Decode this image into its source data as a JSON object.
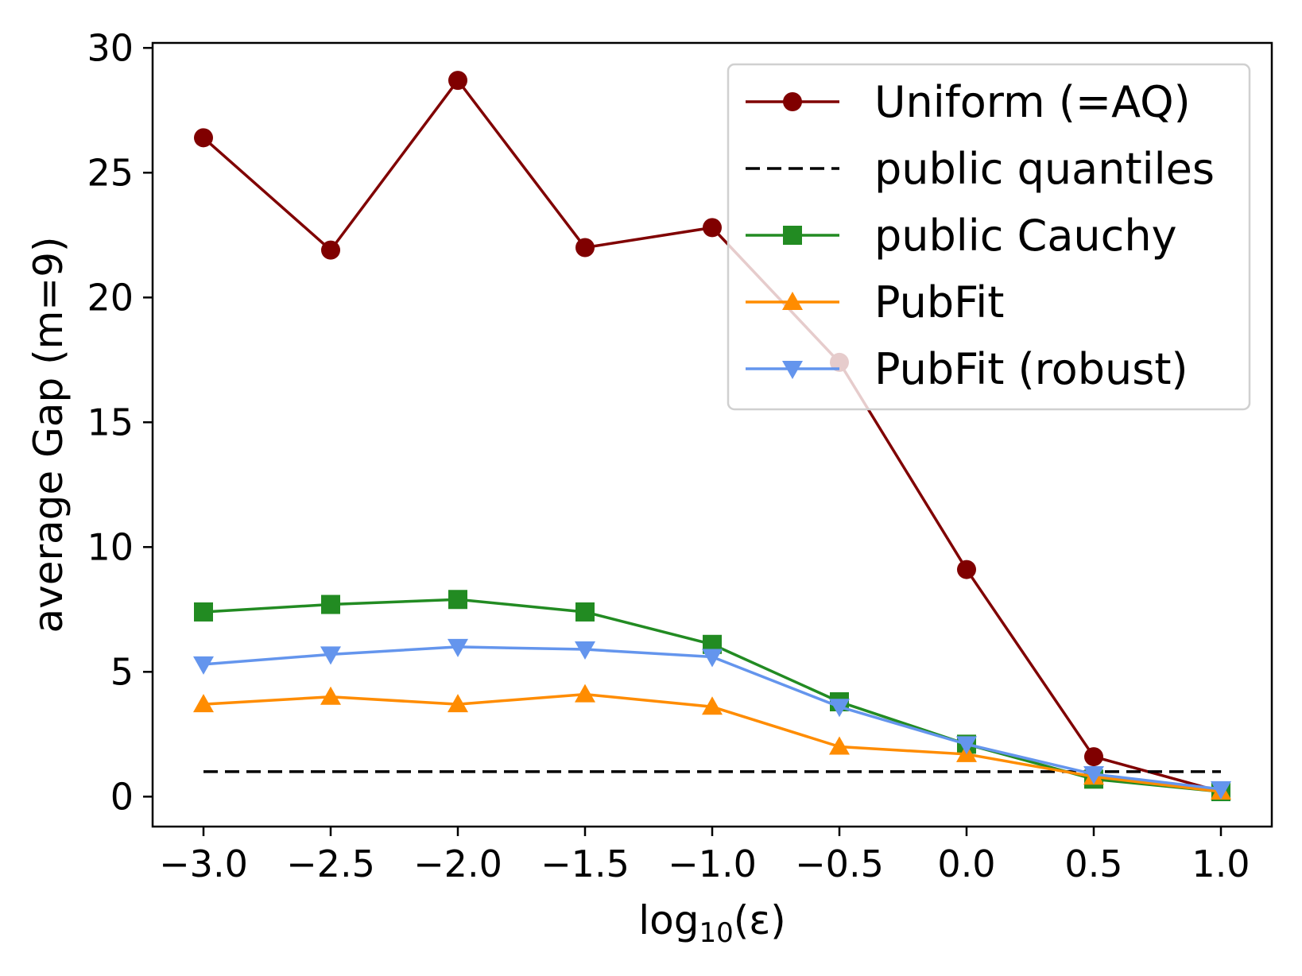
{
  "chart_data": {
    "type": "line",
    "xlabel": {
      "prefix": "log",
      "sub": "10",
      "suffix": "(ε)"
    },
    "ylabel": "average Gap (m=9)",
    "xlim": [
      -3.2,
      1.2
    ],
    "ylim": [
      -1.2,
      30.2
    ],
    "xticks": [
      -3.0,
      -2.5,
      -2.0,
      -1.5,
      -1.0,
      -0.5,
      0.0,
      0.5,
      1.0
    ],
    "xtick_labels": [
      "−3.0",
      "−2.5",
      "−2.0",
      "−1.5",
      "−1.0",
      "−0.5",
      "0.0",
      "0.5",
      "1.0"
    ],
    "yticks": [
      0,
      5,
      10,
      15,
      20,
      25,
      30
    ],
    "ytick_labels": [
      "0",
      "5",
      "10",
      "15",
      "20",
      "25",
      "30"
    ],
    "grid": false,
    "legend_position": "top-right",
    "x": [
      -3.0,
      -2.5,
      -2.0,
      -1.5,
      -1.0,
      -0.5,
      0.0,
      0.5,
      1.0
    ],
    "series": [
      {
        "name": "Uniform (=AQ)",
        "color": "#800000",
        "marker": "circle",
        "dash": "solid",
        "values": [
          26.4,
          21.9,
          28.7,
          22.0,
          22.8,
          17.4,
          9.1,
          1.6,
          0.2
        ]
      },
      {
        "name": "public quantiles",
        "color": "#000000",
        "marker": "none",
        "dash": "dashed",
        "values": [
          1.0,
          1.0,
          1.0,
          1.0,
          1.0,
          1.0,
          1.0,
          1.0,
          1.0
        ]
      },
      {
        "name": "public Cauchy",
        "color": "#228b22",
        "marker": "square",
        "dash": "solid",
        "values": [
          7.4,
          7.7,
          7.9,
          7.4,
          6.1,
          3.8,
          2.1,
          0.7,
          0.2
        ]
      },
      {
        "name": "PubFit",
        "color": "#ff8c00",
        "marker": "triangle-up",
        "dash": "solid",
        "values": [
          3.7,
          4.0,
          3.7,
          4.1,
          3.6,
          2.0,
          1.7,
          0.8,
          0.2
        ]
      },
      {
        "name": "PubFit (robust)",
        "color": "#6495ed",
        "marker": "triangle-down",
        "dash": "solid",
        "values": [
          5.3,
          5.7,
          6.0,
          5.9,
          5.6,
          3.6,
          2.1,
          0.9,
          0.3
        ]
      }
    ]
  }
}
